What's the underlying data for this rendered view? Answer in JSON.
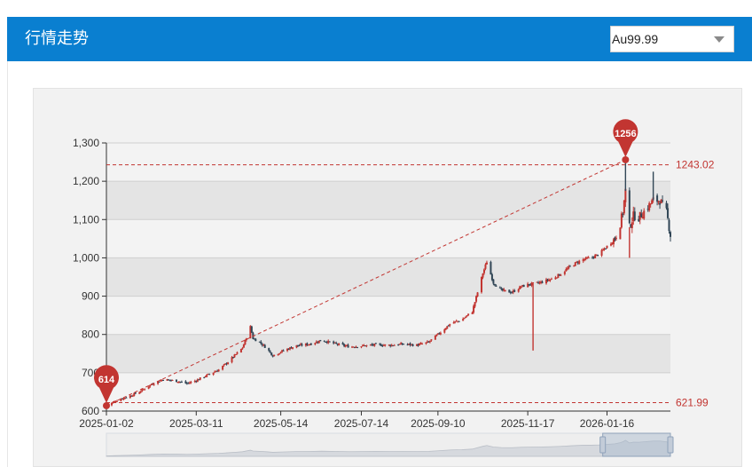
{
  "header": {
    "title": "行情走势",
    "background": "#0a7fd0"
  },
  "product_select": {
    "value": "Au99.99"
  },
  "chart_data": {
    "type": "candlestick",
    "ylim": [
      600,
      1300
    ],
    "y_ticks": [
      "600",
      "700",
      "800",
      "900",
      "1,000",
      "1,100",
      "1,200",
      "1,300"
    ],
    "x_range": [
      "2025-01-02",
      "2026-03-05"
    ],
    "x_ticks": [
      "2025-01-02",
      "2025-03-11",
      "2025-05-14",
      "2025-07-14",
      "2025-09-10",
      "2025-11-17",
      "2026-01-16"
    ],
    "grid": true,
    "colors": {
      "up": "#c23531",
      "down": "#314656",
      "mark": "#c23531"
    },
    "close_path": [
      [
        "2025-01-02",
        614
      ],
      [
        "2025-01-10",
        628
      ],
      [
        "2025-01-20",
        640
      ],
      [
        "2025-01-28",
        652
      ],
      [
        "2025-02-05",
        670
      ],
      [
        "2025-02-14",
        683
      ],
      [
        "2025-02-25",
        678
      ],
      [
        "2025-03-04",
        672
      ],
      [
        "2025-03-11",
        680
      ],
      [
        "2025-03-20",
        695
      ],
      [
        "2025-03-28",
        708
      ],
      [
        "2025-04-03",
        725
      ],
      [
        "2025-04-10",
        748
      ],
      [
        "2025-04-15",
        765
      ],
      [
        "2025-04-21",
        820
      ],
      [
        "2025-04-23",
        790
      ],
      [
        "2025-04-28",
        780
      ],
      [
        "2025-05-03",
        765
      ],
      [
        "2025-05-08",
        745
      ],
      [
        "2025-05-14",
        755
      ],
      [
        "2025-05-25",
        770
      ],
      [
        "2025-06-05",
        775
      ],
      [
        "2025-06-14",
        785
      ],
      [
        "2025-06-25",
        775
      ],
      [
        "2025-07-05",
        768
      ],
      [
        "2025-07-14",
        770
      ],
      [
        "2025-07-25",
        773
      ],
      [
        "2025-08-05",
        772
      ],
      [
        "2025-08-15",
        775
      ],
      [
        "2025-08-25",
        772
      ],
      [
        "2025-09-03",
        780
      ],
      [
        "2025-09-10",
        800
      ],
      [
        "2025-09-20",
        830
      ],
      [
        "2025-09-28",
        838
      ],
      [
        "2025-10-06",
        860
      ],
      [
        "2025-10-10",
        910
      ],
      [
        "2025-10-14",
        960
      ],
      [
        "2025-10-17",
        990
      ],
      [
        "2025-10-22",
        935
      ],
      [
        "2025-10-28",
        915
      ],
      [
        "2025-11-05",
        910
      ],
      [
        "2025-11-12",
        925
      ],
      [
        "2025-11-17",
        930
      ],
      [
        "2025-11-26",
        935
      ],
      [
        "2025-12-05",
        945
      ],
      [
        "2025-12-12",
        958
      ],
      [
        "2025-12-20",
        980
      ],
      [
        "2025-12-28",
        995
      ],
      [
        "2026-01-04",
        1000
      ],
      [
        "2026-01-10",
        1010
      ],
      [
        "2026-01-16",
        1030
      ],
      [
        "2026-01-22",
        1050
      ],
      [
        "2026-01-26",
        1090
      ],
      [
        "2026-01-28",
        1120
      ],
      [
        "2026-01-30",
        1175
      ],
      [
        "2026-02-02",
        1080
      ],
      [
        "2026-02-05",
        1110
      ],
      [
        "2026-02-09",
        1105
      ],
      [
        "2026-02-14",
        1125
      ],
      [
        "2026-02-20",
        1150
      ],
      [
        "2026-02-25",
        1150
      ],
      [
        "2026-03-02",
        1120
      ],
      [
        "2026-03-05",
        1060
      ]
    ],
    "spikes": [
      [
        "2025-11-21",
        758
      ],
      [
        "2026-01-30",
        1256
      ],
      [
        "2026-02-02",
        1000
      ],
      [
        "2026-02-20",
        1225
      ]
    ],
    "max_point": {
      "label": "1256",
      "date": "2026-01-30",
      "value": 1256
    },
    "min_point": {
      "label": "614",
      "date": "2025-01-02",
      "value": 614
    },
    "mark_lines": [
      {
        "label": "1243.02",
        "value": 1243.02
      },
      {
        "label": "621.99",
        "value": 621.99
      }
    ],
    "data_zoom": {
      "start": 0.88,
      "end": 1.0
    }
  }
}
